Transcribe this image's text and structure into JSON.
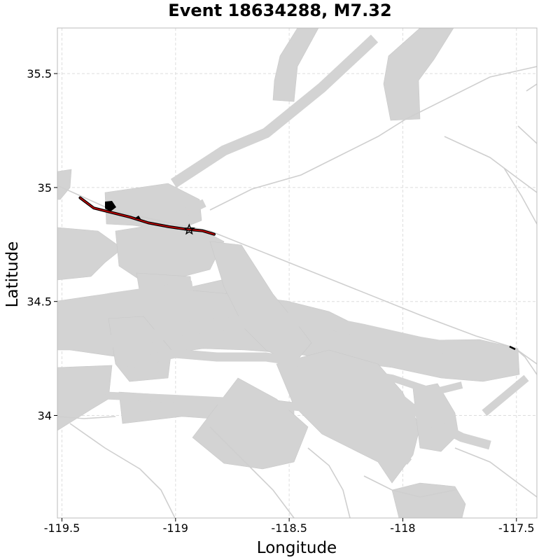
{
  "chart_data": {
    "type": "map",
    "title": "Event 18634288, M7.32",
    "xlabel": "Longitude",
    "ylabel": "Latitude",
    "xlim": [
      -119.52,
      -117.41
    ],
    "ylim": [
      33.55,
      35.7
    ],
    "x_ticks": [
      {
        "value": -119.5,
        "label": "-119.5"
      },
      {
        "value": -119.0,
        "label": "-119"
      },
      {
        "value": -118.5,
        "label": "-118.5"
      },
      {
        "value": -118.0,
        "label": "-118"
      },
      {
        "value": -117.5,
        "label": "-117.5"
      }
    ],
    "y_ticks": [
      {
        "value": 34.0,
        "label": "34"
      },
      {
        "value": 34.5,
        "label": "34.5"
      },
      {
        "value": 35.0,
        "label": "35"
      },
      {
        "value": 35.5,
        "label": "35.5"
      }
    ],
    "grid": true,
    "rupture_trace": [
      [
        -119.42,
        34.955
      ],
      [
        -119.36,
        34.91
      ],
      [
        -119.28,
        34.89
      ],
      [
        -119.2,
        34.87
      ],
      [
        -119.12,
        34.845
      ],
      [
        -119.03,
        34.828
      ],
      [
        -118.96,
        34.818
      ],
      [
        -118.88,
        34.81
      ],
      [
        -118.83,
        34.795
      ]
    ],
    "hypocenter": [
      -118.94,
      34.815
    ],
    "hypocenter_marker": "star",
    "colors": {
      "background": "#ffffff",
      "fault_surfaces": "#d3d3d3",
      "fault_traces": "#cfcfcf",
      "rupture": "#cc0000",
      "rupture_outline": "#000000",
      "frame": "#bbbbbb",
      "grid": "#dddddd"
    }
  }
}
